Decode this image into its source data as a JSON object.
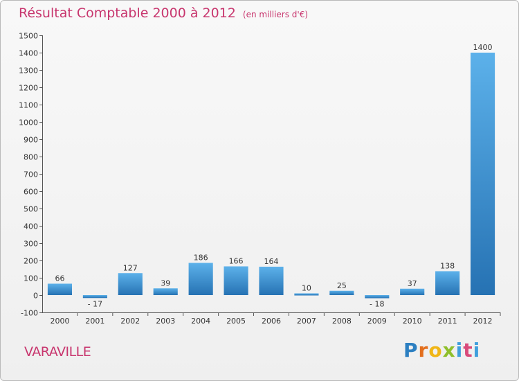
{
  "header": {
    "title": "Résultat Comptable 2000 à 2012",
    "subtitle": "(en milliers d'€)"
  },
  "footer": {
    "place": "VARAVILLE",
    "logo_letters": [
      "P",
      "r",
      "o",
      "x",
      "i",
      "t",
      "i"
    ]
  },
  "colors": {
    "title": "#c8366e",
    "bar_light": "#5cb1ea",
    "bar_dark": "#2672b3",
    "axis": "#555555",
    "background": "#f3f3f3"
  },
  "chart_data": {
    "type": "bar",
    "title": "Résultat Comptable 2000 à 2012",
    "subtitle": "(en milliers d'€)",
    "categories": [
      "2000",
      "2001",
      "2002",
      "2003",
      "2004",
      "2005",
      "2006",
      "2007",
      "2008",
      "2009",
      "2010",
      "2011",
      "2012"
    ],
    "values": [
      66,
      -17,
      127,
      39,
      186,
      166,
      164,
      10,
      25,
      -18,
      37,
      138,
      1400
    ],
    "data_labels": [
      "66",
      "- 17",
      "127",
      "39",
      "186",
      "166",
      "164",
      "10",
      "25",
      "- 18",
      "37",
      "138",
      "1400"
    ],
    "ylim": [
      -100,
      1500
    ],
    "yticks": [
      -100,
      0,
      100,
      200,
      300,
      400,
      500,
      600,
      700,
      800,
      900,
      1000,
      1100,
      1200,
      1300,
      1400,
      1500
    ],
    "xlabel": "",
    "ylabel": "",
    "grid": false,
    "legend": "none"
  }
}
